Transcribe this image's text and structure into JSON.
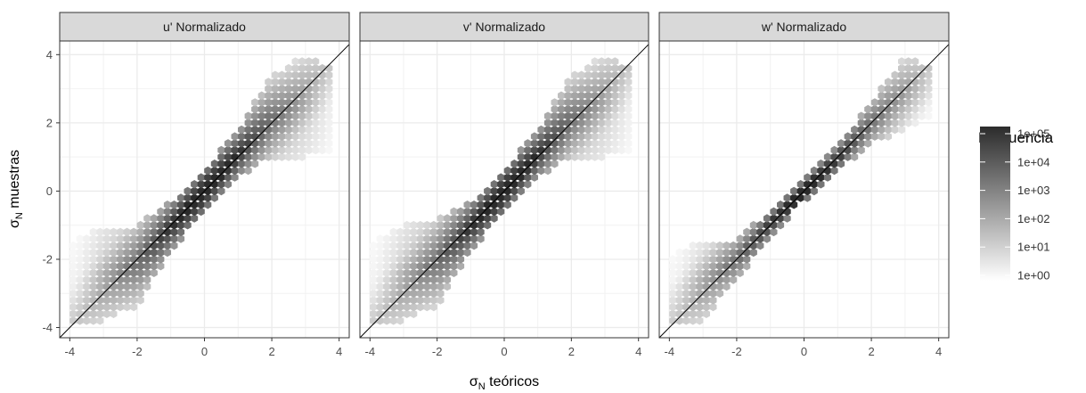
{
  "chart_data": {
    "type": "heatmap",
    "subtype": "hexbin",
    "facets": [
      {
        "strip_label": "u' Normalizado",
        "density_profile": [
          {
            "x": -3.8,
            "y_low": -3.8,
            "y_high": -1.4,
            "log10_count": 0.3
          },
          {
            "x": -3.0,
            "y_low": -3.8,
            "y_high": -1.0,
            "log10_count": 1.2
          },
          {
            "x": -2.0,
            "y_low": -3.4,
            "y_high": -1.0,
            "log10_count": 2.3
          },
          {
            "x": -1.0,
            "y_low": -1.8,
            "y_high": -0.3,
            "log10_count": 3.8
          },
          {
            "x": 0.0,
            "y_low": -0.6,
            "y_high": 0.6,
            "log10_count": 5.0
          },
          {
            "x": 1.0,
            "y_low": 0.4,
            "y_high": 1.8,
            "log10_count": 3.8
          },
          {
            "x": 2.0,
            "y_low": 1.0,
            "y_high": 3.4,
            "log10_count": 2.3
          },
          {
            "x": 3.0,
            "y_low": 1.0,
            "y_high": 4.0,
            "log10_count": 1.2
          },
          {
            "x": 3.8,
            "y_low": 1.2,
            "y_high": 3.6,
            "log10_count": 0.3
          }
        ]
      },
      {
        "strip_label": "v' Normalizado",
        "density_profile": [
          {
            "x": -3.8,
            "y_low": -3.8,
            "y_high": -1.4,
            "log10_count": 0.3
          },
          {
            "x": -3.0,
            "y_low": -3.8,
            "y_high": -1.0,
            "log10_count": 1.2
          },
          {
            "x": -2.0,
            "y_low": -3.4,
            "y_high": -0.8,
            "log10_count": 2.3
          },
          {
            "x": -1.0,
            "y_low": -1.8,
            "y_high": -0.3,
            "log10_count": 3.8
          },
          {
            "x": 0.0,
            "y_low": -0.6,
            "y_high": 0.6,
            "log10_count": 5.0
          },
          {
            "x": 1.0,
            "y_low": 0.4,
            "y_high": 1.8,
            "log10_count": 3.8
          },
          {
            "x": 2.0,
            "y_low": 1.0,
            "y_high": 3.4,
            "log10_count": 2.3
          },
          {
            "x": 3.0,
            "y_low": 1.0,
            "y_high": 4.0,
            "log10_count": 1.2
          },
          {
            "x": 3.8,
            "y_low": 1.2,
            "y_high": 3.6,
            "log10_count": 0.3
          }
        ]
      },
      {
        "strip_label": "w' Normalizado",
        "density_profile": [
          {
            "x": -3.8,
            "y_low": -3.8,
            "y_high": -1.8,
            "log10_count": 0.3
          },
          {
            "x": -3.0,
            "y_low": -3.8,
            "y_high": -1.4,
            "log10_count": 1.2
          },
          {
            "x": -2.0,
            "y_low": -2.6,
            "y_high": -1.4,
            "log10_count": 2.3
          },
          {
            "x": -1.0,
            "y_low": -1.3,
            "y_high": -0.6,
            "log10_count": 3.8
          },
          {
            "x": 0.0,
            "y_low": -0.3,
            "y_high": 0.3,
            "log10_count": 5.0
          },
          {
            "x": 1.0,
            "y_low": 0.6,
            "y_high": 1.3,
            "log10_count": 3.8
          },
          {
            "x": 2.0,
            "y_low": 1.4,
            "y_high": 2.6,
            "log10_count": 2.3
          },
          {
            "x": 3.0,
            "y_low": 1.8,
            "y_high": 4.0,
            "log10_count": 1.2
          },
          {
            "x": 3.8,
            "y_low": 2.2,
            "y_high": 3.6,
            "log10_count": 0.3
          }
        ]
      }
    ],
    "reference_line": {
      "slope": 1,
      "intercept": 0,
      "color": "#000000"
    },
    "xlabel_symbol": "σ",
    "xlabel_subscript": "N",
    "xlabel_text": " teóricos",
    "ylabel_symbol": "σ",
    "ylabel_subscript": "N",
    "ylabel_text": " muestras",
    "xlim": [
      -4.3,
      4.3
    ],
    "ylim": [
      -4.3,
      4.4
    ],
    "x_ticks": [
      -4,
      -2,
      0,
      2,
      4
    ],
    "y_ticks": [
      -4,
      -2,
      0,
      2,
      4
    ],
    "x_tick_labels": [
      "-4",
      "-2",
      "0",
      "2",
      "4"
    ],
    "y_tick_labels": [
      "-4",
      "-2",
      "0",
      "2",
      "4"
    ],
    "grid": true,
    "legend": {
      "title": "Frecuencia",
      "placement": "right",
      "scale": "log10",
      "labels": [
        "1e+05",
        "1e+04",
        "1e+03",
        "1e+02",
        "1e+01",
        "1e+00"
      ],
      "label_values": [
        5,
        4,
        3,
        2,
        1,
        0
      ],
      "colors": {
        "low": "#ffffff",
        "high": "#2b2b2b"
      }
    },
    "colors": {
      "panel_background": "#ffffff",
      "strip_background": "#d9d9d9",
      "gridline": "#ebebeb",
      "panel_border": "#333333"
    }
  }
}
